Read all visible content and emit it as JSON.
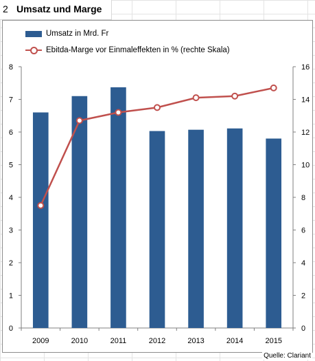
{
  "header": {
    "number": "2",
    "title": "Umsatz und Marge"
  },
  "legend": {
    "bar_label": "Umsatz in Mrd. Fr",
    "line_label": "Ebitda-Marge vor Einmaleffekten in % (rechte Skala)"
  },
  "source": "Quelle: Clariant",
  "colors": {
    "bar": "#2d5c91",
    "line": "#c0504d"
  },
  "chart_data": {
    "type": "bar",
    "categories": [
      "2009",
      "2010",
      "2011",
      "2012",
      "2013",
      "2014",
      "2015"
    ],
    "series": [
      {
        "name": "Umsatz in Mrd. Fr",
        "type": "bar",
        "axis": "left",
        "values": [
          6.6,
          7.1,
          7.37,
          6.03,
          6.07,
          6.11,
          5.8
        ]
      },
      {
        "name": "Ebitda-Marge vor Einmaleffekten in % (rechte Skala)",
        "type": "line",
        "axis": "right",
        "values": [
          7.5,
          12.7,
          13.2,
          13.5,
          14.1,
          14.2,
          14.7
        ]
      }
    ],
    "ylim": [
      0,
      8
    ],
    "yticks": [
      0,
      1,
      2,
      3,
      4,
      5,
      6,
      7,
      8
    ],
    "y2lim": [
      0,
      16
    ],
    "y2ticks": [
      0,
      2,
      4,
      6,
      8,
      10,
      12,
      14,
      16
    ],
    "grid": false,
    "legend_position": "top-left"
  }
}
